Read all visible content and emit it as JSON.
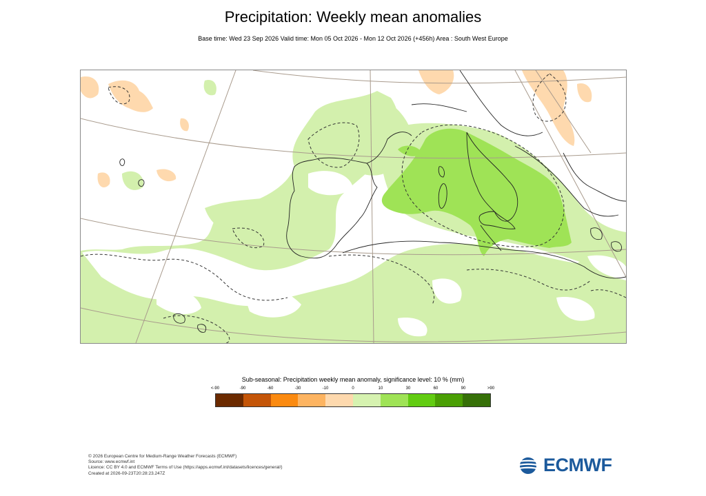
{
  "header": {
    "title": "Precipitation: Weekly mean anomalies",
    "subtitle": "Base time: Wed 23 Sep 2026 Valid time: Mon 05 Oct 2026 - Mon 12 Oct 2026 (+456h) Area : South West Europe"
  },
  "legend": {
    "title": "Sub-seasonal: Precipitation weekly mean anomaly, significance level: 10 % (mm)",
    "ticks": [
      "<-90",
      "-90",
      "-60",
      "-30",
      "-10",
      "0",
      "10",
      "30",
      "60",
      "90",
      ">90"
    ],
    "colors": [
      "#6b2a00",
      "#c45508",
      "#fb8a10",
      "#fdb461",
      "#fed9ae",
      "#d6f2b0",
      "#9fe356",
      "#62cc12",
      "#4a9f04",
      "#367008"
    ]
  },
  "map": {
    "area": "South West Europe",
    "colors": {
      "wet_light": "#d3f0ad",
      "wet_medium": "#9fe356",
      "dry_light": "#fed9ae",
      "coast": "#222222",
      "graticule": "#a89a8c",
      "significance": "#333333"
    }
  },
  "footer": {
    "lines": [
      "© 2026 European Centre for Medium-Range Weather Forecasts (ECMWF)",
      "Source: www.ecmwf.int",
      "Licence: CC BY 4.0 and ECMWF Terms of Use (https://apps.ecmwf.int/datasets/licences/general/)",
      "Created at 2026-09-23T20:28:23.247Z"
    ]
  },
  "logo": {
    "text": "ECMWF",
    "icon": "ecmwf-logo-icon",
    "color": "#1c5a9c"
  }
}
